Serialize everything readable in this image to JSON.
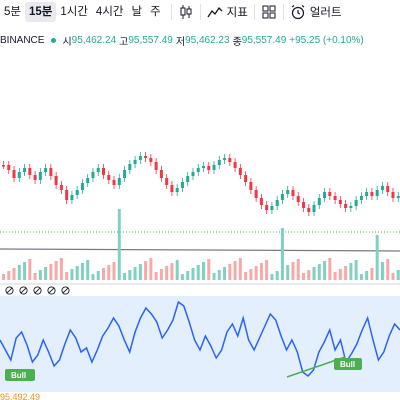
{
  "toolbar": {
    "timeframes": [
      "5분",
      "15분",
      "1시간",
      "4시간",
      "날",
      "주"
    ],
    "active_timeframe": "15분",
    "indicators_label": "지표",
    "alert_label": "얼러트"
  },
  "legend": {
    "exchange": "BINANCE",
    "open_label": "시",
    "open": "95,462.24",
    "high_label": "고",
    "high": "95,557.49",
    "low_label": "저",
    "low": "95,462.23",
    "close_label": "종",
    "close": "95,557.49",
    "change": "+95.25 (+0.10%)"
  },
  "oscillator": {
    "labels": [
      "Bull",
      "Bull"
    ],
    "line_color": "#2962ff",
    "band_fill": "#e3effd",
    "divergence_color": "#4caf50"
  },
  "colors": {
    "up": "#22ab94",
    "down": "#f23645",
    "up_vol": "#7fd1c4",
    "down_vol": "#f7a9a7"
  },
  "bottom_price": "95,492.49"
}
